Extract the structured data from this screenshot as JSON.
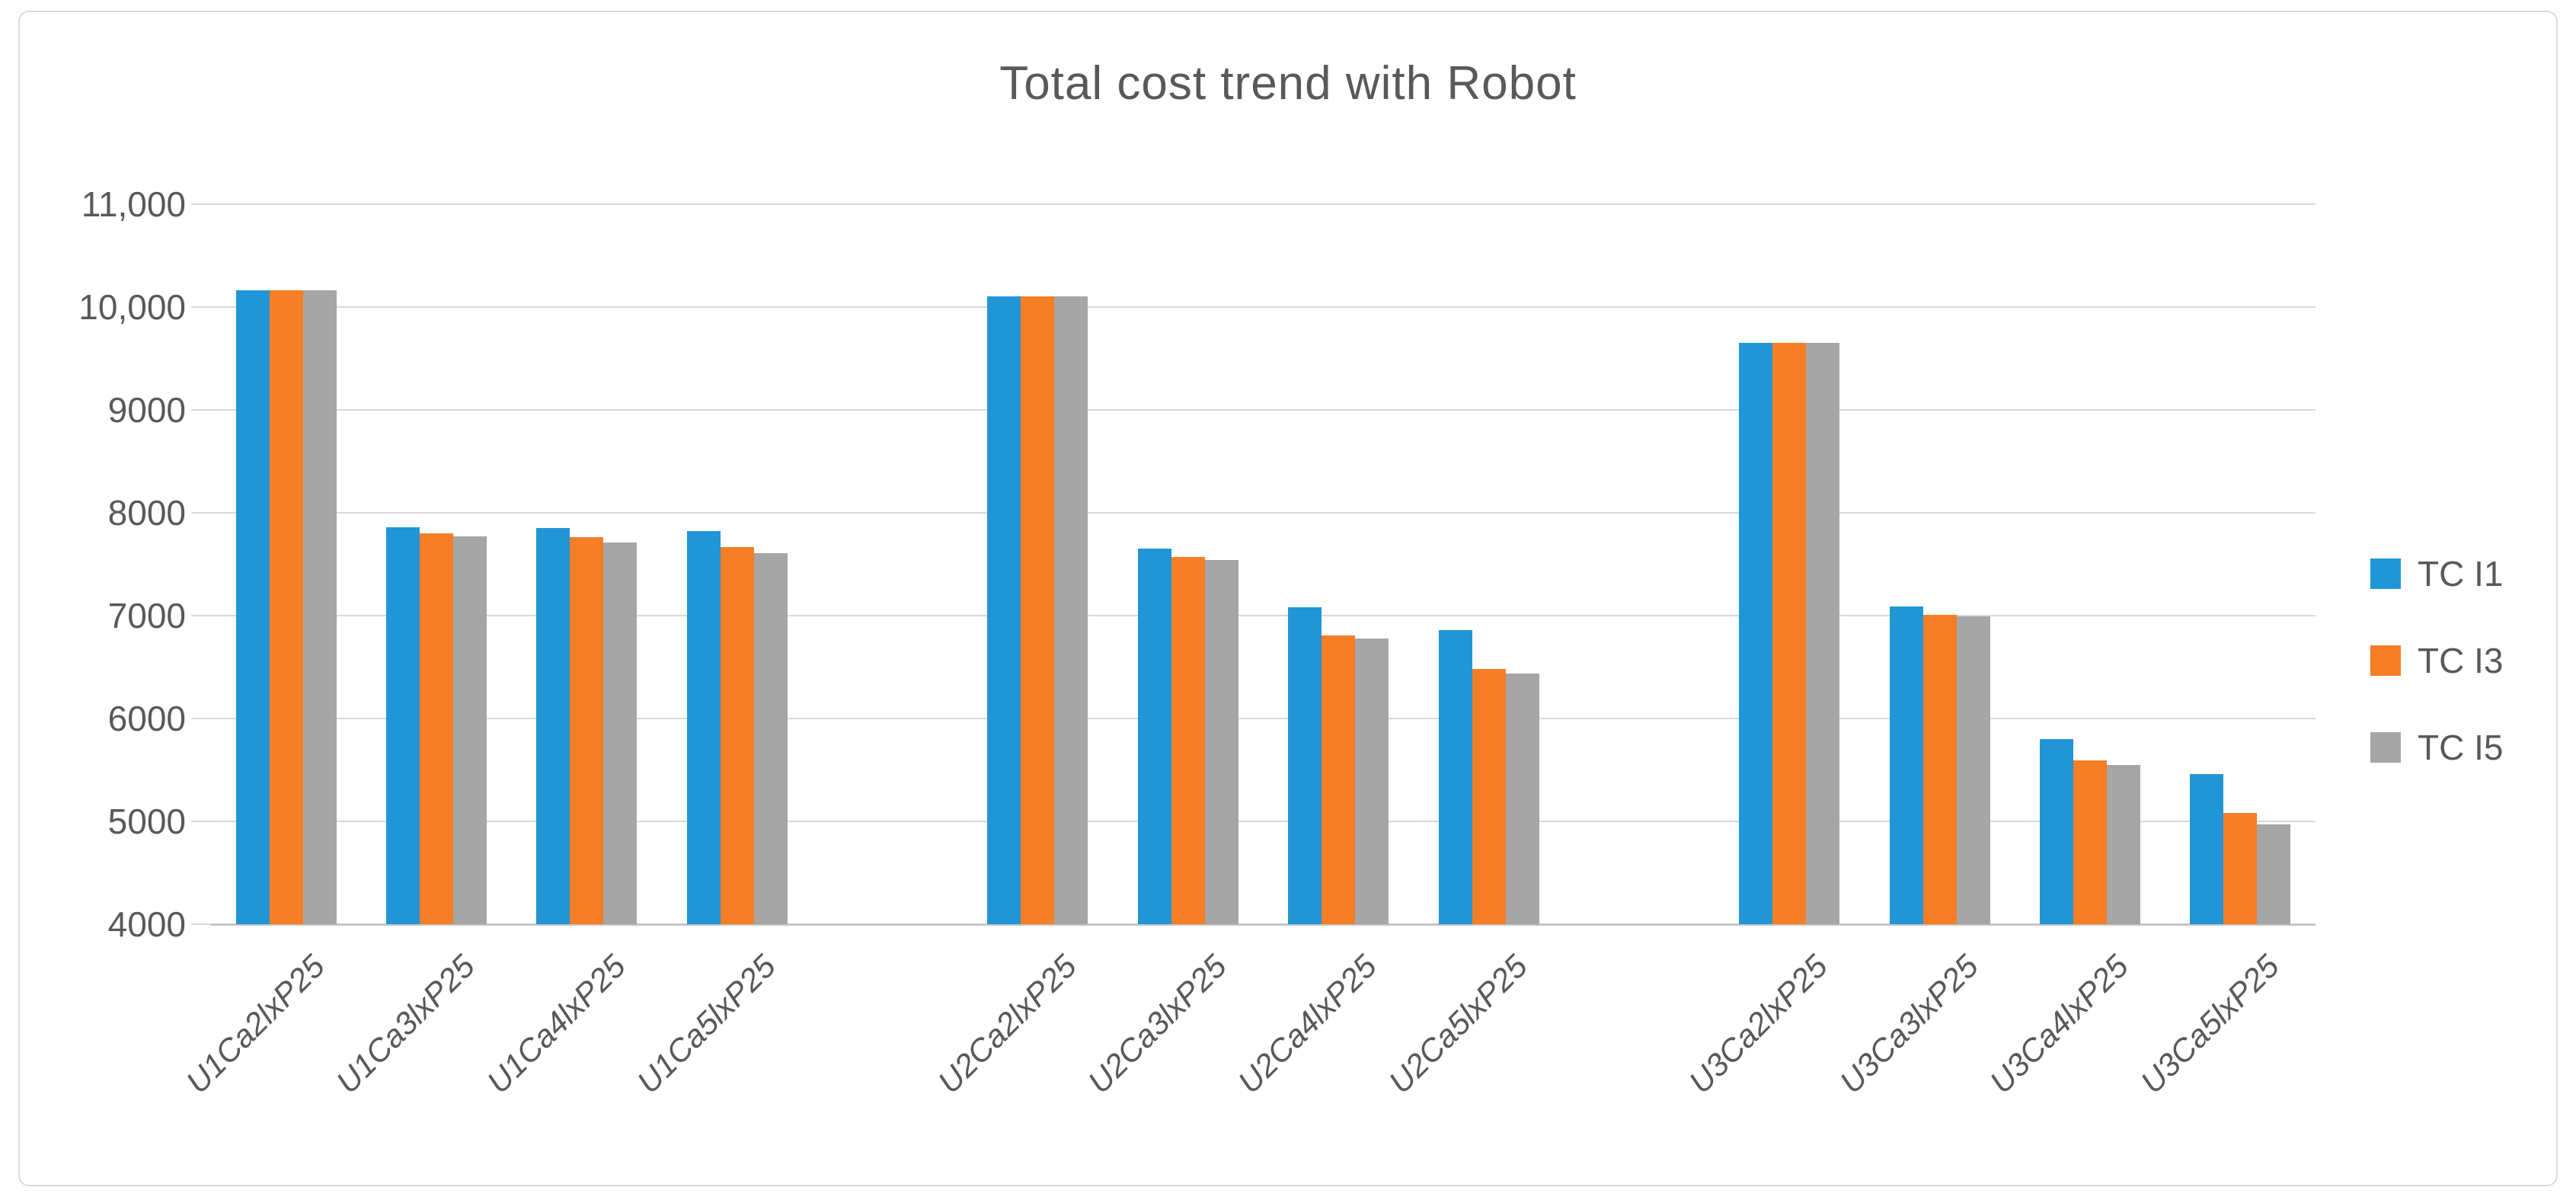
{
  "chart_data": {
    "type": "bar",
    "title": "Total cost trend with Robot",
    "categories": [
      "U1Ca2lxP25",
      "U1Ca3lxP25",
      "U1Ca4lxP25",
      "U1Ca5lxP25",
      "U2Ca2lxP25",
      "U2Ca3lxP25",
      "U2Ca4lxP25",
      "U2Ca5lxP25",
      "U3Ca2lxP25",
      "U3Ca3lxP25",
      "U3Ca4lxP25",
      "U3Ca5lxP25"
    ],
    "series": [
      {
        "name": "TC I1",
        "color": "#2295D6",
        "values": [
          10160,
          7860,
          7850,
          7820,
          10100,
          7650,
          7080,
          6860,
          9650,
          7090,
          5800,
          5460
        ]
      },
      {
        "name": "TC I3",
        "color": "#F57E27",
        "values": [
          10160,
          7800,
          7760,
          7670,
          10100,
          7570,
          6810,
          6480,
          9650,
          7010,
          5590,
          5080
        ]
      },
      {
        "name": "TC I5",
        "color": "#A6A6A6",
        "values": [
          10160,
          7770,
          7710,
          7610,
          10100,
          7540,
          6780,
          6440,
          9650,
          6990,
          5550,
          4970
        ]
      }
    ],
    "y_axis": {
      "min": 4000,
      "max": 11000,
      "step": 1000,
      "tick_labels": [
        "11,000",
        "10,000",
        "9000",
        "8000",
        "7000",
        "6000",
        "5000",
        "4000"
      ]
    },
    "x_axis": {
      "section_breaks_after_index": [
        3,
        7
      ]
    },
    "legend_position": "right",
    "grid": true,
    "colors": {
      "text": "#595959",
      "gridline": "#D9D9D9",
      "axis_line": "#C6C6C6",
      "frame_border": "#D9D9D9",
      "background": "#FFFFFF"
    }
  }
}
